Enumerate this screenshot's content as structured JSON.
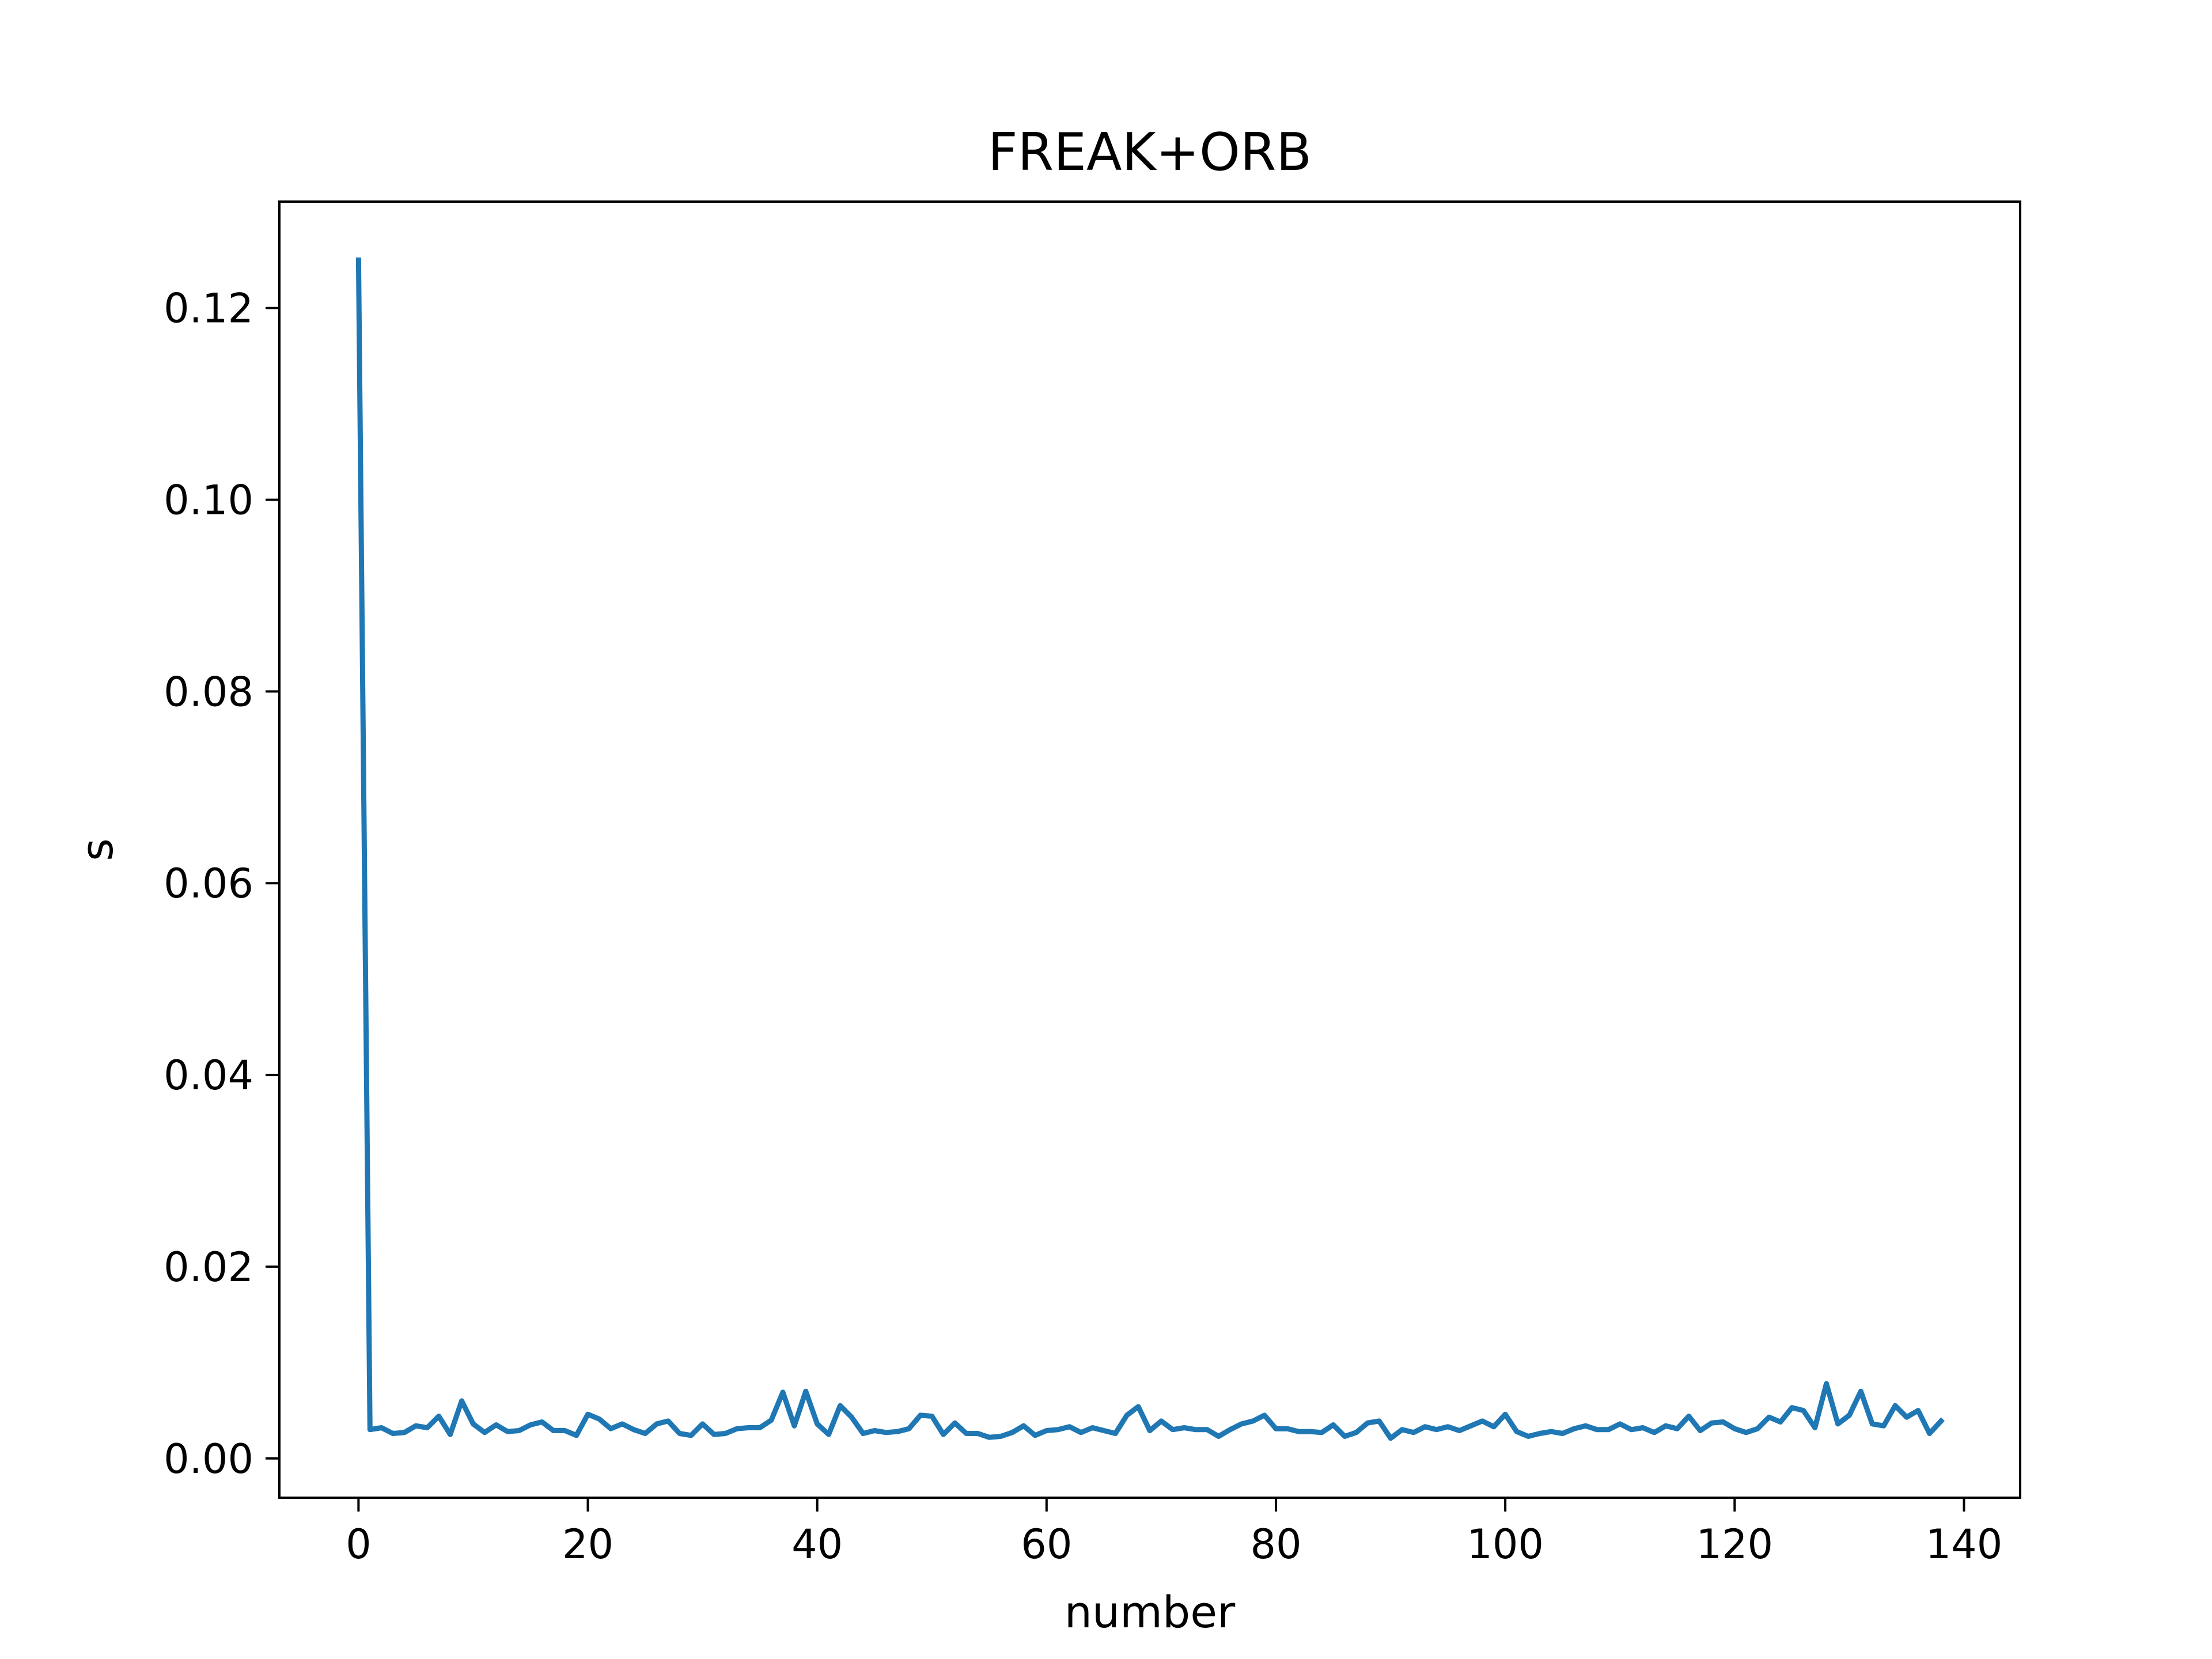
{
  "chart_data": {
    "type": "line",
    "title": "FREAK+ORB",
    "xlabel": "number",
    "ylabel": "s",
    "xlim": [
      -6.9,
      144.9
    ],
    "ylim": [
      -0.0041,
      0.1311
    ],
    "xticks": [
      0,
      20,
      40,
      60,
      80,
      100,
      120,
      140
    ],
    "yticks": [
      0.0,
      0.02,
      0.04,
      0.06,
      0.08,
      0.1,
      0.12
    ],
    "ytick_labels": [
      "0.00",
      "0.02",
      "0.04",
      "0.06",
      "0.08",
      "0.10",
      "0.12"
    ],
    "grid": false,
    "line_color": "#1f77b4",
    "series": [
      {
        "x": [
          0,
          1,
          2,
          3,
          4,
          5,
          6,
          7,
          8,
          9,
          10,
          11,
          12,
          13,
          14,
          15,
          16,
          17,
          18,
          19,
          20,
          21,
          22,
          23,
          24,
          25,
          26,
          27,
          28,
          29,
          30,
          31,
          32,
          33,
          34,
          35,
          36,
          37,
          38,
          39,
          40,
          41,
          42,
          43,
          44,
          45,
          46,
          47,
          48,
          49,
          50,
          51,
          52,
          53,
          54,
          55,
          56,
          57,
          58,
          59,
          60,
          61,
          62,
          63,
          64,
          65,
          66,
          67,
          68,
          69,
          70,
          71,
          72,
          73,
          74,
          75,
          76,
          77,
          78,
          79,
          80,
          81,
          82,
          83,
          84,
          85,
          86,
          87,
          88,
          89,
          90,
          91,
          92,
          93,
          94,
          95,
          96,
          97,
          98,
          99,
          100,
          101,
          102,
          103,
          104,
          105,
          106,
          107,
          108,
          109,
          110,
          111,
          112,
          113,
          114,
          115,
          116,
          117,
          118,
          119,
          120,
          121,
          122,
          123,
          124,
          125,
          126,
          127,
          128,
          129,
          130,
          131,
          132,
          133,
          134,
          135,
          136,
          137,
          138
        ],
        "values": [
          0.125,
          0.003,
          0.0032,
          0.0026,
          0.0027,
          0.0034,
          0.0032,
          0.0044,
          0.0025,
          0.006,
          0.0036,
          0.0027,
          0.0035,
          0.0028,
          0.0029,
          0.0035,
          0.0038,
          0.0029,
          0.0029,
          0.0024,
          0.0046,
          0.0041,
          0.0031,
          0.0036,
          0.003,
          0.0026,
          0.0036,
          0.0039,
          0.0026,
          0.0024,
          0.0036,
          0.0025,
          0.0026,
          0.0031,
          0.0032,
          0.0032,
          0.004,
          0.0069,
          0.0034,
          0.007,
          0.0036,
          0.0025,
          0.0055,
          0.0043,
          0.0026,
          0.0029,
          0.0027,
          0.0028,
          0.0031,
          0.0045,
          0.0044,
          0.0025,
          0.0037,
          0.0026,
          0.0026,
          0.0022,
          0.0023,
          0.0027,
          0.0034,
          0.0024,
          0.0029,
          0.003,
          0.0033,
          0.0027,
          0.0032,
          0.0029,
          0.0026,
          0.0045,
          0.0054,
          0.0029,
          0.0039,
          0.003,
          0.0032,
          0.003,
          0.003,
          0.0023,
          0.003,
          0.0036,
          0.0039,
          0.0045,
          0.0031,
          0.0031,
          0.0028,
          0.0028,
          0.0027,
          0.0035,
          0.0023,
          0.0027,
          0.0037,
          0.0039,
          0.0021,
          0.003,
          0.0027,
          0.0033,
          0.003,
          0.0033,
          0.0029,
          0.0034,
          0.0039,
          0.0033,
          0.0046,
          0.0028,
          0.0023,
          0.0026,
          0.0028,
          0.0026,
          0.0031,
          0.0034,
          0.003,
          0.003,
          0.0036,
          0.003,
          0.0032,
          0.0027,
          0.0034,
          0.0031,
          0.0044,
          0.0029,
          0.0037,
          0.0038,
          0.0031,
          0.0027,
          0.0031,
          0.0043,
          0.0038,
          0.0053,
          0.005,
          0.0032,
          0.0078,
          0.0036,
          0.0045,
          0.007,
          0.0036,
          0.0034,
          0.0055,
          0.0043,
          0.005,
          0.0026,
          0.0039
        ]
      }
    ]
  }
}
